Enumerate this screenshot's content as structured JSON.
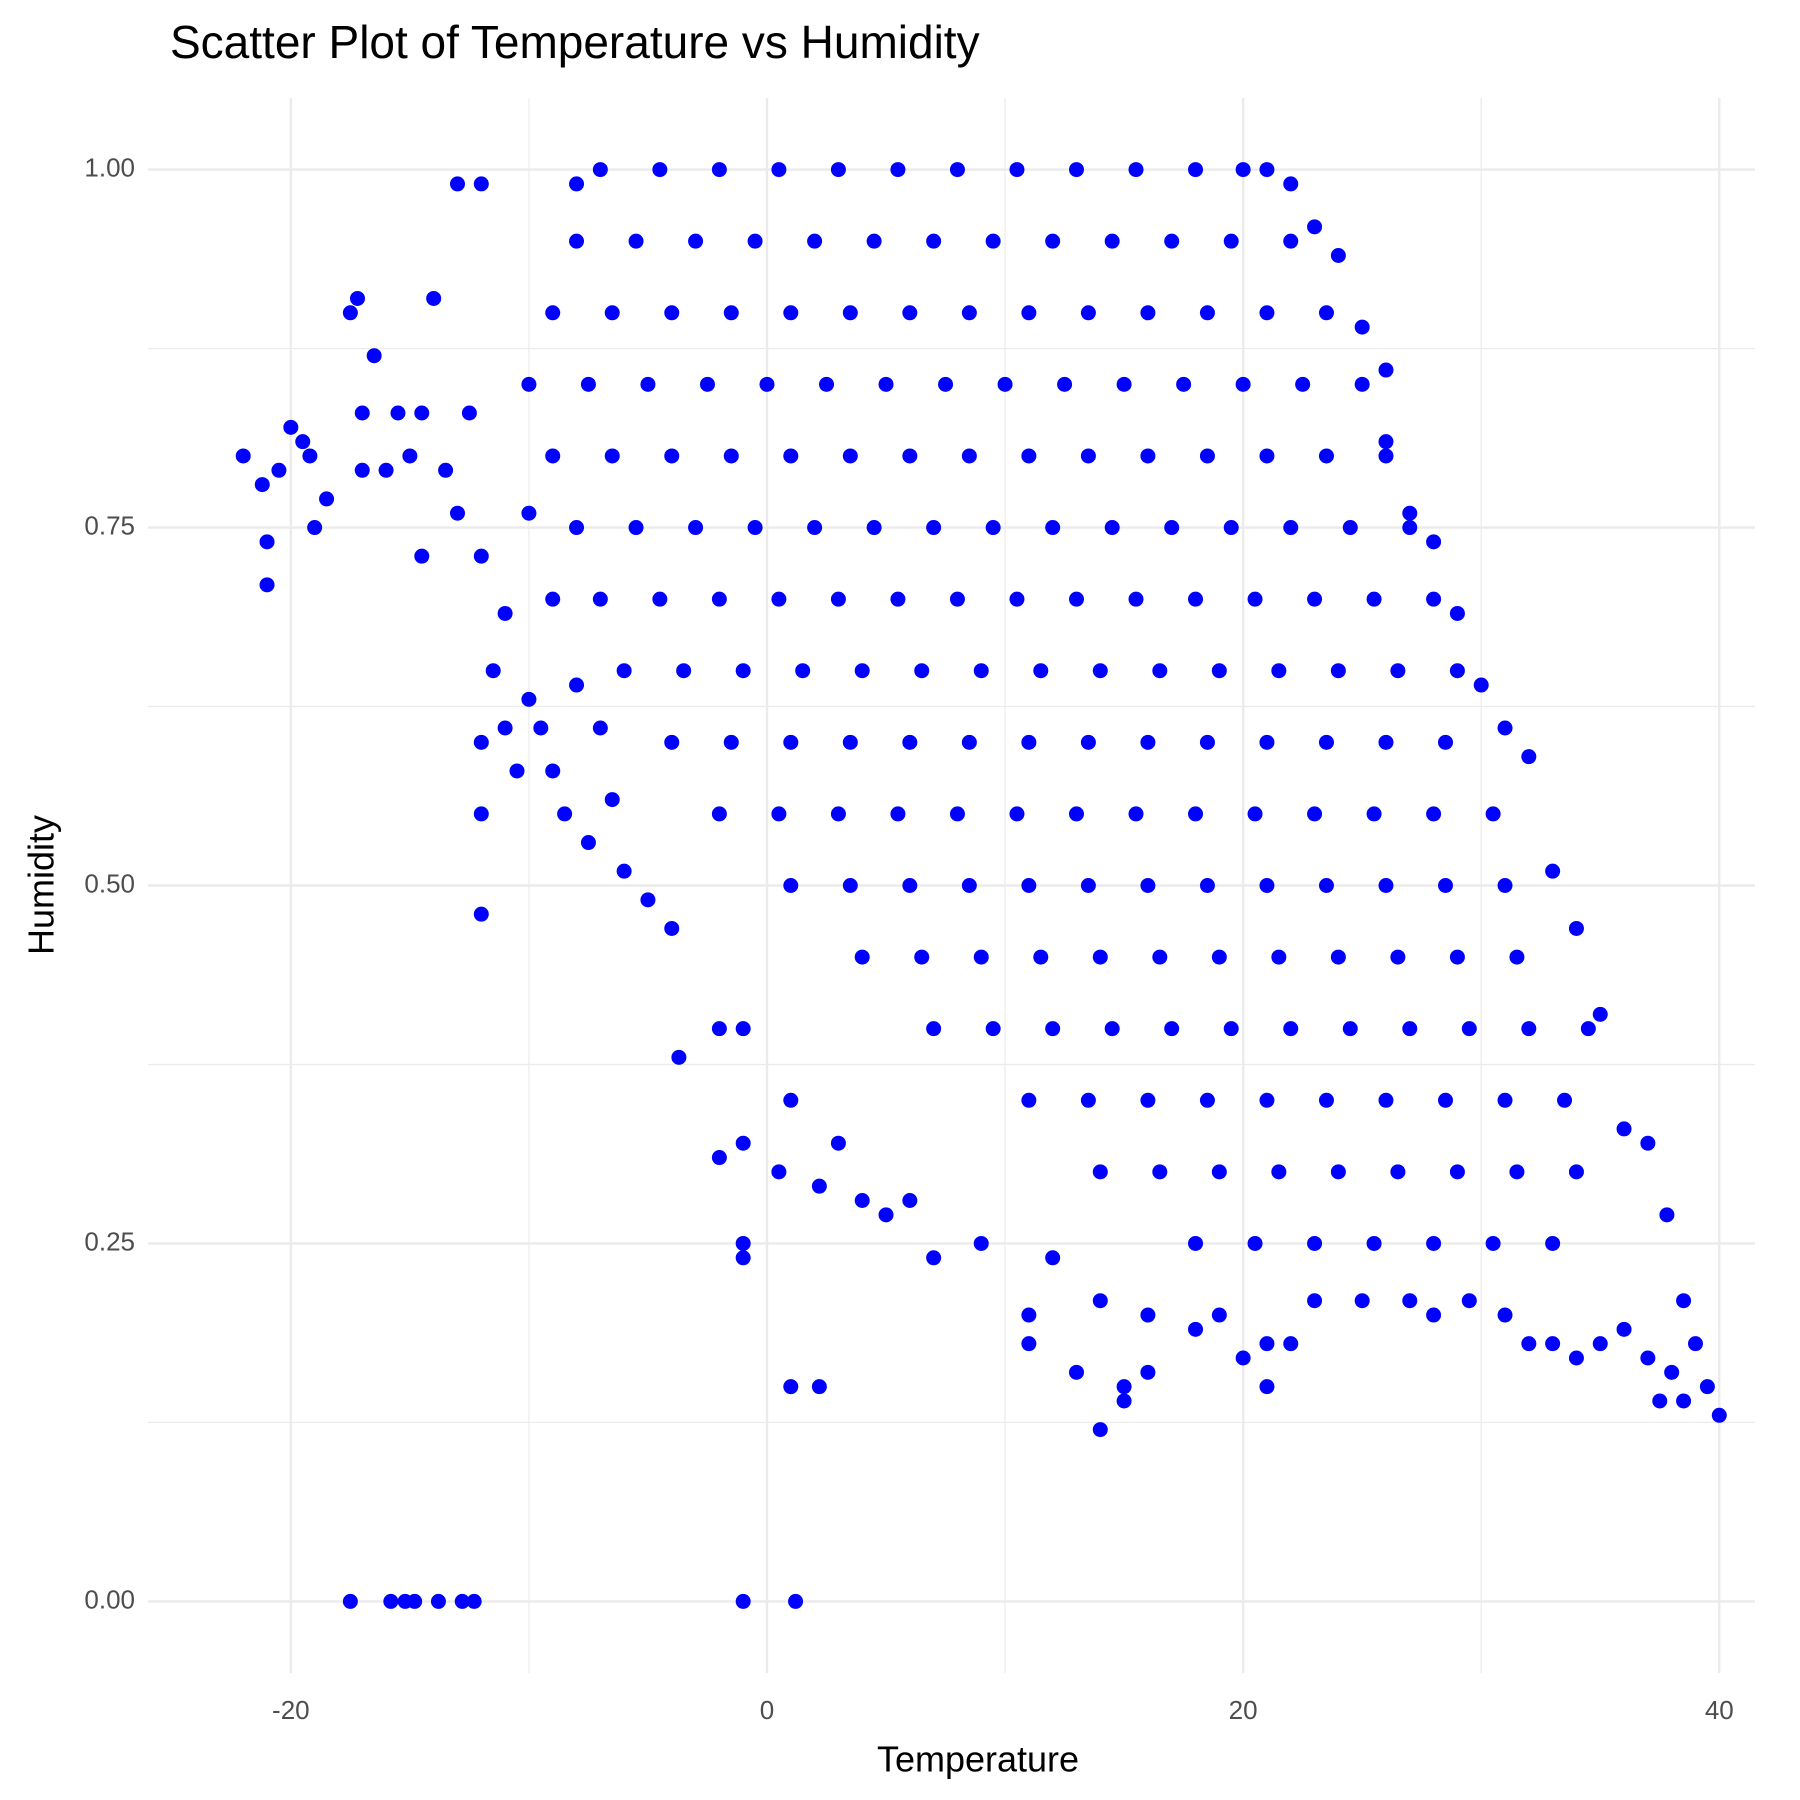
{
  "chart_data": {
    "type": "scatter",
    "title": "Scatter Plot of Temperature vs Humidity",
    "x_label": "Temperature",
    "y_label": "Humidity",
    "color": "#0000ff",
    "grid": true,
    "xlim": [
      -26,
      41.5
    ],
    "ylim": [
      -0.05,
      1.05
    ],
    "xticks": [
      -20,
      0,
      20,
      40
    ],
    "yticks": [
      {
        "value": 0,
        "label": "0.00"
      },
      {
        "value": 0.25,
        "label": "0.25"
      },
      {
        "value": 0.5,
        "label": "0.50"
      },
      {
        "value": 0.75,
        "label": "0.75"
      },
      {
        "value": 1,
        "label": "1.00"
      }
    ],
    "xminor": [
      -10,
      10,
      30
    ],
    "yminor": [
      0.125,
      0.375,
      0.625,
      0.875
    ],
    "x": [
      -22,
      -21.2,
      -21,
      -21,
      -20.5,
      -20,
      -19.5,
      -19,
      -18.5,
      -19.2,
      -17.5,
      -17.2,
      -17,
      -17,
      -16.5,
      -16,
      -15.5,
      -15,
      -14.5,
      -14.5,
      -14,
      -13.5,
      -13,
      -13,
      -12.5,
      -12,
      -12,
      -12,
      -12,
      -12,
      -11.5,
      -11,
      -11,
      -10.5,
      -10,
      -10,
      -9.5,
      -9,
      -9,
      -8.5,
      -8,
      -8,
      -7.5,
      -7,
      -6.5,
      -6,
      -5,
      -4,
      -3.7,
      -2,
      -2,
      -1,
      -1,
      -1,
      -1,
      0.5,
      1,
      1,
      2.2,
      2.2,
      3,
      4,
      5,
      6,
      7,
      9,
      11,
      11,
      12,
      13,
      14,
      14,
      15,
      15,
      16,
      16,
      18,
      19,
      20,
      21,
      21,
      22,
      23,
      25,
      27,
      28,
      29.5,
      31,
      32,
      33,
      34,
      35,
      36,
      37,
      37.5,
      38,
      38.5,
      39,
      39.5,
      40,
      38.5,
      37.8,
      37,
      36,
      35,
      34,
      33,
      32,
      31,
      30,
      29,
      28,
      27,
      26,
      26,
      25,
      24,
      23,
      22,
      21,
      20,
      -17.5,
      -15.8,
      -15.2,
      -14.8,
      -13.8,
      -12.8,
      -12.3,
      -1,
      1.2,
      -7,
      -4.5,
      -2,
      0.5,
      3,
      5.5,
      8,
      10.5,
      13,
      15.5,
      18,
      -8,
      -5.5,
      -3,
      -0.5,
      2,
      4.5,
      7,
      9.5,
      12,
      14.5,
      17,
      19.5,
      22,
      -9,
      -6.5,
      -4,
      -1.5,
      1,
      3.5,
      6,
      8.5,
      11,
      13.5,
      16,
      18.5,
      21,
      23.5,
      -10,
      -7.5,
      -5,
      -2.5,
      0,
      2.5,
      5,
      7.5,
      10,
      12.5,
      15,
      17.5,
      20,
      22.5,
      25,
      -9,
      -6.5,
      -4,
      -1.5,
      1,
      3.5,
      6,
      8.5,
      11,
      13.5,
      16,
      18.5,
      21,
      23.5,
      26,
      -8,
      -5.5,
      -3,
      -0.5,
      2,
      4.5,
      7,
      9.5,
      12,
      14.5,
      17,
      19.5,
      22,
      24.5,
      27,
      -7,
      -4.5,
      -2,
      0.5,
      3,
      5.5,
      8,
      10.5,
      13,
      15.5,
      18,
      20.5,
      23,
      25.5,
      28,
      -6,
      -3.5,
      -1,
      1.5,
      4,
      6.5,
      9,
      11.5,
      14,
      16.5,
      19,
      21.5,
      24,
      26.5,
      29,
      -4,
      -1.5,
      1,
      3.5,
      6,
      8.5,
      11,
      13.5,
      16,
      18.5,
      21,
      23.5,
      26,
      28.5,
      -2,
      0.5,
      3,
      5.5,
      8,
      10.5,
      13,
      15.5,
      18,
      20.5,
      23,
      25.5,
      28,
      30.5,
      1,
      3.5,
      6,
      8.5,
      11,
      13.5,
      16,
      18.5,
      21,
      23.5,
      26,
      28.5,
      31,
      4,
      6.5,
      9,
      11.5,
      14,
      16.5,
      19,
      21.5,
      24,
      26.5,
      29,
      31.5,
      7,
      9.5,
      12,
      14.5,
      17,
      19.5,
      22,
      24.5,
      27,
      29.5,
      32,
      34.5,
      11,
      13.5,
      16,
      18.5,
      21,
      23.5,
      26,
      28.5,
      31,
      33.5,
      14,
      16.5,
      19,
      21.5,
      24,
      26.5,
      29,
      31.5,
      34,
      18,
      20.5,
      23,
      25.5,
      28,
      30.5,
      33
    ],
    "values": [
      0.8,
      0.78,
      0.74,
      0.71,
      0.79,
      0.82,
      0.81,
      0.75,
      0.77,
      0.8,
      0.9,
      0.91,
      0.83,
      0.79,
      0.87,
      0.79,
      0.83,
      0.8,
      0.83,
      0.73,
      0.91,
      0.79,
      0.99,
      0.76,
      0.83,
      0.99,
      0.73,
      0.6,
      0.55,
      0.48,
      0.65,
      0.61,
      0.69,
      0.58,
      0.63,
      0.76,
      0.61,
      0.58,
      0.7,
      0.55,
      0.64,
      0.99,
      0.53,
      0.61,
      0.56,
      0.51,
      0.49,
      0.47,
      0.38,
      0.4,
      0.31,
      0.32,
      0.4,
      0.25,
      0.24,
      0.3,
      0.35,
      0.15,
      0.15,
      0.29,
      0.32,
      0.28,
      0.27,
      0.28,
      0.24,
      0.25,
      0.2,
      0.18,
      0.24,
      0.16,
      0.21,
      0.12,
      0.14,
      0.15,
      0.16,
      0.2,
      0.19,
      0.2,
      0.17,
      0.15,
      0.18,
      0.18,
      0.21,
      0.21,
      0.21,
      0.2,
      0.21,
      0.2,
      0.18,
      0.18,
      0.17,
      0.18,
      0.19,
      0.17,
      0.14,
      0.16,
      0.14,
      0.18,
      0.15,
      0.13,
      0.21,
      0.27,
      0.32,
      0.33,
      0.41,
      0.47,
      0.51,
      0.59,
      0.61,
      0.64,
      0.69,
      0.74,
      0.76,
      0.81,
      0.86,
      0.89,
      0.94,
      0.96,
      0.99,
      1.0,
      1.0,
      0,
      0,
      0,
      0,
      0,
      0,
      0,
      0,
      0,
      1.0,
      1.0,
      1.0,
      1.0,
      1.0,
      1.0,
      1.0,
      1.0,
      1.0,
      1.0,
      1.0,
      0.95,
      0.95,
      0.95,
      0.95,
      0.95,
      0.95,
      0.95,
      0.95,
      0.95,
      0.95,
      0.95,
      0.95,
      0.95,
      0.9,
      0.9,
      0.9,
      0.9,
      0.9,
      0.9,
      0.9,
      0.9,
      0.9,
      0.9,
      0.9,
      0.9,
      0.9,
      0.9,
      0.85,
      0.85,
      0.85,
      0.85,
      0.85,
      0.85,
      0.85,
      0.85,
      0.85,
      0.85,
      0.85,
      0.85,
      0.85,
      0.85,
      0.85,
      0.8,
      0.8,
      0.8,
      0.8,
      0.8,
      0.8,
      0.8,
      0.8,
      0.8,
      0.8,
      0.8,
      0.8,
      0.8,
      0.8,
      0.8,
      0.75,
      0.75,
      0.75,
      0.75,
      0.75,
      0.75,
      0.75,
      0.75,
      0.75,
      0.75,
      0.75,
      0.75,
      0.75,
      0.75,
      0.75,
      0.7,
      0.7,
      0.7,
      0.7,
      0.7,
      0.7,
      0.7,
      0.7,
      0.7,
      0.7,
      0.7,
      0.7,
      0.7,
      0.7,
      0.7,
      0.65,
      0.65,
      0.65,
      0.65,
      0.65,
      0.65,
      0.65,
      0.65,
      0.65,
      0.65,
      0.65,
      0.65,
      0.65,
      0.65,
      0.65,
      0.6,
      0.6,
      0.6,
      0.6,
      0.6,
      0.6,
      0.6,
      0.6,
      0.6,
      0.6,
      0.6,
      0.6,
      0.6,
      0.6,
      0.55,
      0.55,
      0.55,
      0.55,
      0.55,
      0.55,
      0.55,
      0.55,
      0.55,
      0.55,
      0.55,
      0.55,
      0.55,
      0.55,
      0.5,
      0.5,
      0.5,
      0.5,
      0.5,
      0.5,
      0.5,
      0.5,
      0.5,
      0.5,
      0.5,
      0.5,
      0.5,
      0.45,
      0.45,
      0.45,
      0.45,
      0.45,
      0.45,
      0.45,
      0.45,
      0.45,
      0.45,
      0.45,
      0.45,
      0.4,
      0.4,
      0.4,
      0.4,
      0.4,
      0.4,
      0.4,
      0.4,
      0.4,
      0.4,
      0.4,
      0.4,
      0.35,
      0.35,
      0.35,
      0.35,
      0.35,
      0.35,
      0.35,
      0.35,
      0.35,
      0.35,
      0.3,
      0.3,
      0.3,
      0.3,
      0.3,
      0.3,
      0.3,
      0.3,
      0.3,
      0.25,
      0.25,
      0.25,
      0.25,
      0.25,
      0.25,
      0.25
    ]
  }
}
